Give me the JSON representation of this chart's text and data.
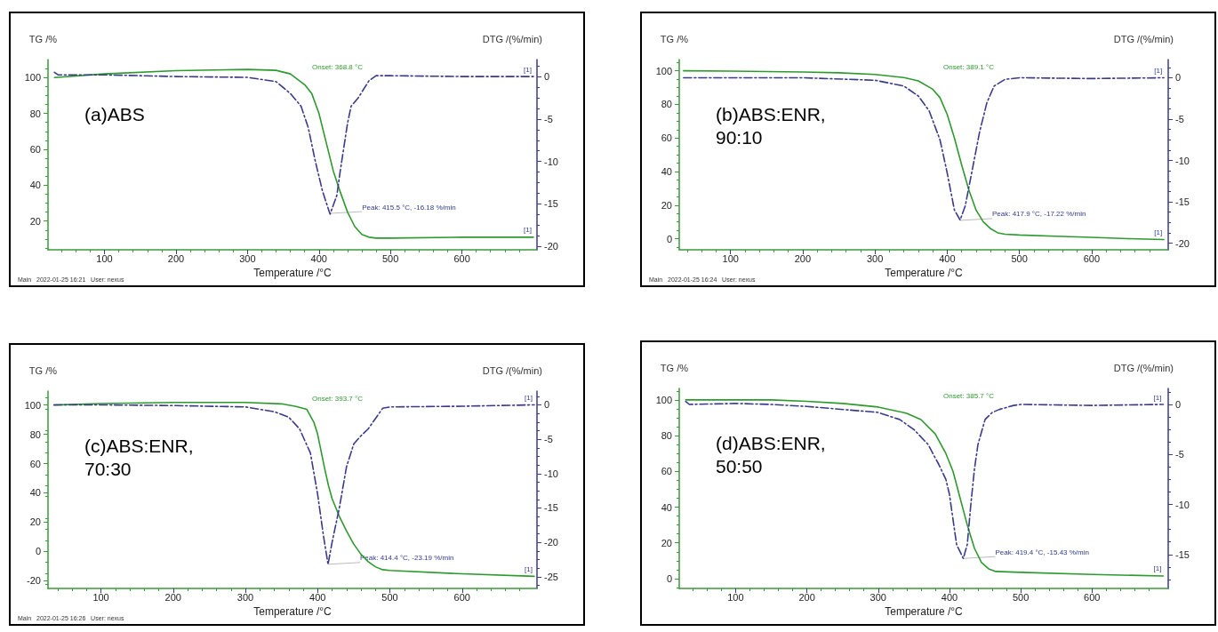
{
  "chart_data": [
    {
      "type": "line",
      "title": "(a)ABS",
      "xlabel": "Temperature /°C",
      "ylabel": "TG /%",
      "y2label": "DTG /(%/min)",
      "xlim": [
        21,
        705
      ],
      "xticks": [
        100,
        200,
        300,
        400,
        500,
        600
      ],
      "ylim": [
        4,
        110
      ],
      "yticks": [
        20,
        40,
        60,
        80,
        100
      ],
      "y2lim": [
        -20.4,
        2
      ],
      "y2ticks": [
        -20,
        -15,
        -10,
        -5,
        0
      ],
      "grid": false,
      "marker": "none",
      "series": [
        {
          "color": "#2e9a2e",
          "line_style": "solid",
          "x": [
            30,
            100,
            200,
            300,
            340,
            360,
            380,
            390,
            400,
            410,
            420,
            430,
            440,
            450,
            460,
            470,
            480,
            500,
            600,
            700
          ],
          "values": [
            100,
            102,
            103.8,
            104.5,
            104,
            102,
            96,
            91,
            80,
            64,
            48,
            36,
            25,
            17,
            12.5,
            11,
            10.5,
            10.5,
            11,
            11
          ]
        },
        {
          "color": "#3a3a8c",
          "line_style": "dashed",
          "axis": "y2",
          "x": [
            30,
            35,
            100,
            200,
            300,
            340,
            360,
            375,
            385,
            395,
            405,
            415.5,
            425,
            430,
            440,
            445,
            455,
            470,
            480,
            500,
            600,
            700
          ],
          "values": [
            0.5,
            0.2,
            0.2,
            0,
            -0.1,
            -0.6,
            -2,
            -3.5,
            -6,
            -10,
            -13.5,
            -16.2,
            -14,
            -11,
            -5.5,
            -3.5,
            -2.5,
            -0.5,
            0.1,
            0.1,
            0,
            0
          ]
        }
      ],
      "annotations": [
        "Onset: 368.8 °C",
        {
          "text": "Peak: 415.5 °C, -16.18 %/min",
          "x": 415.5,
          "y": 24.3
        },
        {
          "text": "[1]",
          "x": 700,
          "y": 11
        },
        {
          "text": "[1]",
          "x": 700,
          "y": 100.5
        },
        "Main   2022-01-25 16:21   User: nexus"
      ]
    },
    {
      "type": "line",
      "title": "(b)ABS:ENR, 90:10",
      "xlabel": "Temperature /°C",
      "ylabel": "TG /%",
      "y2label": "DTG /(%/min)",
      "xlim": [
        29,
        706
      ],
      "xticks": [
        100,
        200,
        300,
        400,
        500,
        600
      ],
      "ylim": [
        -6.6,
        106.7
      ],
      "yticks": [
        0,
        20,
        40,
        60,
        80,
        100
      ],
      "y2lim": [
        -20.8,
        2.2
      ],
      "y2ticks": [
        -20,
        -15,
        -10,
        -5,
        0
      ],
      "grid": false,
      "marker": "none",
      "series": [
        {
          "color": "#2e9a2e",
          "line_style": "solid",
          "x": [
            35,
            100,
            200,
            250,
            300,
            340,
            360,
            380,
            390,
            400,
            410,
            420,
            430,
            440,
            450,
            460,
            470,
            480,
            500,
            550,
            600,
            650,
            700
          ],
          "values": [
            100,
            99.8,
            99.3,
            98.8,
            97.8,
            96,
            94,
            89,
            84,
            74,
            60,
            44,
            29,
            17,
            10,
            6,
            3.5,
            2.7,
            2.2,
            1.5,
            0.8,
            0,
            -0.5
          ]
        },
        {
          "color": "#3a3a8c",
          "line_style": "dashed",
          "axis": "y2",
          "x": [
            35,
            100,
            200,
            300,
            340,
            360,
            375,
            390,
            400,
            410,
            417.9,
            425,
            435,
            445,
            455,
            465,
            480,
            500,
            600,
            700
          ],
          "values": [
            0,
            0,
            0,
            -0.3,
            -1,
            -2.2,
            -4,
            -7.5,
            -11.5,
            -16,
            -17.2,
            -15.5,
            -11,
            -6.5,
            -3,
            -1,
            -0.2,
            0,
            -0.1,
            0
          ]
        }
      ],
      "annotations": [
        "Onset: 389.1 °C",
        {
          "text": "Peak: 417.9 °C, -17.22 %/min",
          "x": 417.9,
          "y": 10.9
        },
        {
          "text": "[1]",
          "x": 700,
          "y": -0.5
        },
        {
          "text": "[1]",
          "x": 700,
          "y": 95.9
        },
        "Main   2022-01-25 16:24   User: nexus"
      ]
    },
    {
      "type": "line",
      "title": "(c)ABS:ENR, 70:30",
      "xlabel": "Temperature /°C",
      "ylabel": "TG /%",
      "y2label": "DTG /(%/min)",
      "xlim": [
        26.7,
        703.7
      ],
      "xticks": [
        100,
        200,
        300,
        400,
        500,
        600
      ],
      "ylim": [
        -25.3,
        109.5
      ],
      "yticks": [
        -20,
        0,
        20,
        40,
        60,
        80,
        100
      ],
      "y2lim": [
        -26.7,
        2
      ],
      "y2ticks": [
        -25,
        -20,
        -15,
        -10,
        -5,
        0
      ],
      "grid": false,
      "marker": "none",
      "series": [
        {
          "color": "#2e9a2e",
          "line_style": "solid",
          "x": [
            35,
            100,
            200,
            300,
            350,
            370,
            385,
            395,
            400,
            405,
            410,
            415,
            420,
            430,
            440,
            450,
            460,
            470,
            480,
            490,
            500,
            600,
            700
          ],
          "values": [
            100,
            101,
            101.8,
            101.8,
            100.8,
            99,
            97,
            88,
            80,
            68,
            56,
            45,
            36,
            24,
            14,
            5,
            -2,
            -7,
            -10.5,
            -12.5,
            -13,
            -15.3,
            -17
          ]
        },
        {
          "color": "#3a3a8c",
          "line_style": "dashed",
          "axis": "y2",
          "x": [
            35,
            100,
            200,
            300,
            340,
            360,
            375,
            390,
            400,
            408,
            414.4,
            420,
            430,
            440,
            450,
            460,
            470,
            480,
            490,
            500,
            600,
            700
          ],
          "values": [
            0,
            0,
            -0.1,
            -0.3,
            -1,
            -1.8,
            -3.5,
            -7,
            -13,
            -19,
            -23.2,
            -20,
            -15,
            -9,
            -5.7,
            -4.5,
            -3.5,
            -2,
            -0.5,
            -0.3,
            -0.2,
            0
          ]
        }
      ],
      "annotations": [
        "Onset: 393.7 °C",
        {
          "text": "Peak: 414.4 °C, -23.19 %/min",
          "x": 414.4,
          "y": -8.8
        },
        {
          "text": "[1]",
          "x": 700,
          "y": -17
        },
        {
          "text": "[1]",
          "x": 700,
          "y": 100
        },
        "Main   2022-01-25 16:26   User: nexus"
      ]
    },
    {
      "type": "line",
      "title": "(d)ABS:ENR, 50:50",
      "xlabel": "Temperature /°C",
      "ylabel": "TG /%",
      "y2label": "DTG /(%/min)",
      "xlim": [
        20.9,
        706.9
      ],
      "xticks": [
        100,
        200,
        300,
        400,
        500,
        600
      ],
      "ylim": [
        -5.5,
        106.4
      ],
      "yticks": [
        0,
        20,
        40,
        60,
        80,
        100
      ],
      "y2lim": [
        -18.4,
        1.6
      ],
      "y2ticks": [
        -15,
        -10,
        -5,
        0
      ],
      "grid": false,
      "marker": "none",
      "series": [
        {
          "color": "#2e9a2e",
          "line_style": "solid",
          "x": [
            30,
            150,
            200,
            250,
            300,
            340,
            360,
            380,
            395,
            405,
            415,
            425,
            435,
            445,
            455,
            465,
            500,
            600,
            700
          ],
          "values": [
            100,
            100,
            99.2,
            98,
            96,
            92.5,
            89,
            81,
            70,
            60,
            45,
            30,
            17,
            9,
            5.5,
            4,
            3.5,
            2.3,
            1.5
          ]
        },
        {
          "color": "#3a3a8c",
          "line_style": "dashed",
          "axis": "y2",
          "x": [
            30,
            35,
            100,
            150,
            200,
            300,
            330,
            350,
            370,
            385,
            395,
            400,
            405,
            410,
            419.4,
            425,
            430,
            435,
            440,
            450,
            460,
            470,
            490,
            500,
            600,
            700
          ],
          "values": [
            0.3,
            0,
            0.1,
            0,
            -0.2,
            -0.8,
            -1.5,
            -2.5,
            -4,
            -6,
            -7.5,
            -9,
            -11.5,
            -14,
            -15.4,
            -14,
            -10,
            -6.5,
            -4,
            -1.5,
            -0.8,
            -0.5,
            -0.1,
            0,
            -0.1,
            0
          ]
        }
      ],
      "annotations": [
        "Onset: 385.7 °C",
        {
          "text": "Peak: 419.4 °C, -15.43 %/min",
          "x": 419.4,
          "y": 11.3
        },
        {
          "text": "[1]",
          "x": 700,
          "y": 1.5
        },
        {
          "text": "[1]",
          "x": 700,
          "y": 97.4
        }
      ]
    }
  ]
}
